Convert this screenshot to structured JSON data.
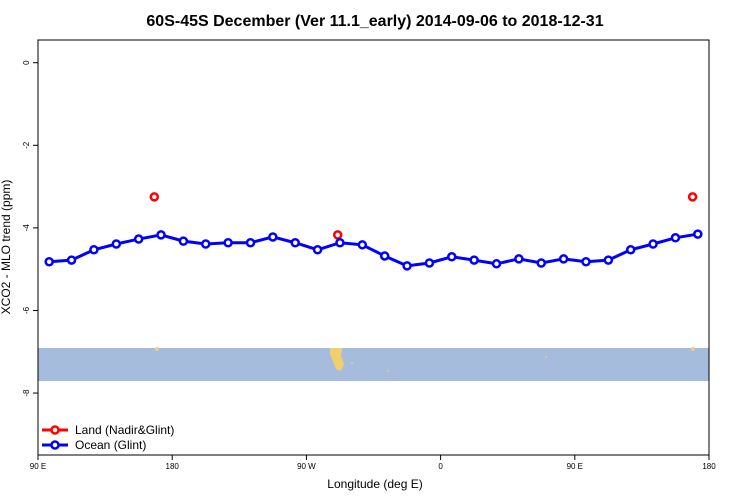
{
  "chart_data": {
    "type": "line",
    "title": "60S-45S December (Ver 11.1_early)   2014-09-06 to 2018-12-31",
    "x_label": "Longitude (deg E)",
    "y_label": "XCO2 - MLO trend (ppm)",
    "xlim": [
      90,
      540
    ],
    "ylim": [
      -9.5,
      0.55
    ],
    "xticks": [
      {
        "value": 90,
        "label": "90 E"
      },
      180,
      {
        "value": 270,
        "label": "90 W"
      },
      {
        "value": 360,
        "label": "0"
      },
      {
        "value": 450,
        "label": "90 E"
      },
      {
        "value": 540,
        "label": "180"
      }
    ],
    "yticks": [
      0,
      -2,
      -4,
      -6,
      -8
    ],
    "legend": "bottom-left",
    "series": [
      {
        "name": "Land (Nadir&Glint)",
        "color": "#ff0000",
        "lines": false,
        "x": [
          168,
          291,
          529
        ],
        "values": [
          -3.25,
          -4.17,
          -3.25
        ]
      },
      {
        "name": "Ocean (Glint)",
        "color": "#0000ff",
        "lines": true,
        "x": [
          97.5,
          112.5,
          127.5,
          142.5,
          157.5,
          172.5,
          187.5,
          202.5,
          217.5,
          232.5,
          247.5,
          262.5,
          277.5,
          292.5,
          307.5,
          322.5,
          337.5,
          352.5,
          367.5,
          382.5,
          397.5,
          412.5,
          427.5,
          442.5,
          457.5,
          472.5,
          487.5,
          502.5,
          517.5,
          532.5
        ],
        "values": [
          -4.82,
          -4.78,
          -4.53,
          -4.39,
          -4.27,
          -4.17,
          -4.32,
          -4.39,
          -4.36,
          -4.36,
          -4.22,
          -4.36,
          -4.53,
          -4.36,
          -4.41,
          -4.68,
          -4.92,
          -4.85,
          -4.7,
          -4.78,
          -4.87,
          -4.75,
          -4.85,
          -4.75,
          -4.82,
          -4.78,
          -4.53,
          -4.39,
          -4.24,
          -4.15
        ]
      }
    ]
  }
}
